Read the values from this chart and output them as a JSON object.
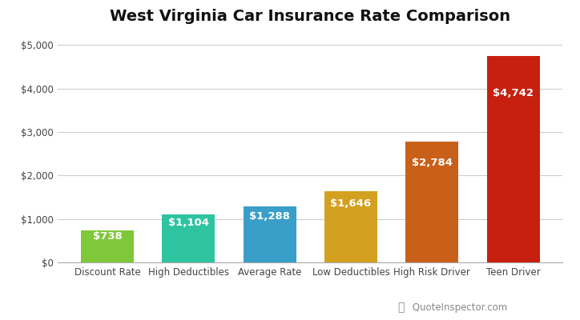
{
  "title": "West Virginia Car Insurance Rate Comparison",
  "categories": [
    "Discount Rate",
    "High Deductibles",
    "Average Rate",
    "Low Deductibles",
    "High Risk Driver",
    "Teen Driver"
  ],
  "values": [
    738,
    1104,
    1288,
    1646,
    2784,
    4742
  ],
  "labels": [
    "$738",
    "$1,104",
    "$1,288",
    "$1,646",
    "$2,784",
    "$4,742"
  ],
  "bar_colors": [
    "#7ec83a",
    "#2ec4a0",
    "#3a9fc8",
    "#d4a020",
    "#c8601a",
    "#c82010"
  ],
  "label_color": "#ffffff",
  "background_color": "#ffffff",
  "grid_color": "#cccccc",
  "title_fontsize": 14,
  "label_fontsize": 9.5,
  "tick_fontsize": 8.5,
  "ylim": [
    0,
    5300
  ],
  "yticks": [
    0,
    1000,
    2000,
    3000,
    4000,
    5000
  ],
  "ytick_labels": [
    "$0",
    "$1,000",
    "$2,000",
    "$3,000",
    "$4,000",
    "$5,000"
  ],
  "watermark_text": "QuoteInspector.com",
  "watermark_color": "#888888",
  "watermark_green": "#7ec83a"
}
